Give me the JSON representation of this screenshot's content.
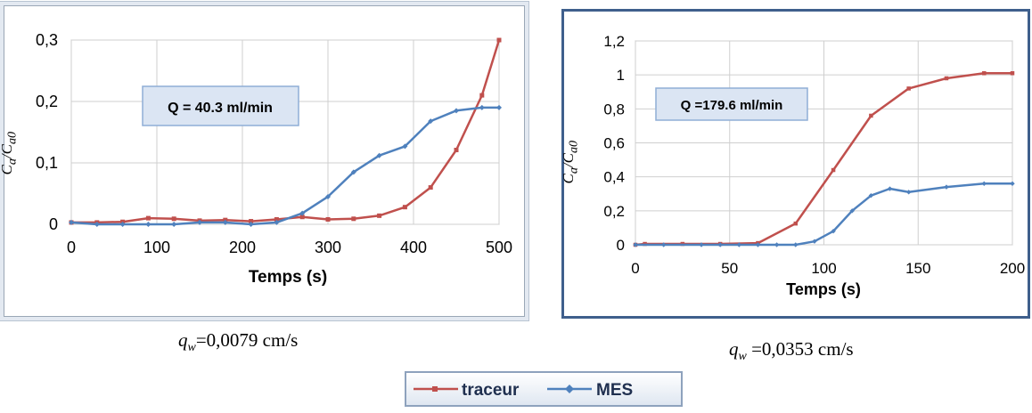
{
  "chart_data": [
    {
      "type": "line",
      "xlabel": "Temps (s)",
      "ylabel": "C_a/C_a0",
      "annotation": "Q = 40.3 ml/min",
      "caption_var": "q",
      "caption_sub": "w",
      "caption_value": "=0,0079 cm/s",
      "xlim": [
        0,
        500
      ],
      "ylim": [
        0,
        0.3
      ],
      "xticks": [
        0,
        100,
        200,
        300,
        400,
        500
      ],
      "yticks": [
        0,
        0.1,
        0.2,
        0.3
      ],
      "xtick_labels": [
        "0",
        "100",
        "200",
        "300",
        "400",
        "500"
      ],
      "ytick_labels": [
        "0",
        "0,1",
        "0,2",
        "0,3"
      ],
      "grid": true,
      "series": [
        {
          "name": "traceur",
          "color": "#c0504d",
          "x": [
            0,
            30,
            60,
            90,
            120,
            150,
            180,
            210,
            240,
            270,
            300,
            330,
            360,
            390,
            420,
            450,
            480,
            500
          ],
          "y": [
            0.003,
            0.003,
            0.004,
            0.01,
            0.009,
            0.006,
            0.007,
            0.005,
            0.008,
            0.012,
            0.008,
            0.009,
            0.014,
            0.028,
            0.06,
            0.121,
            0.21,
            0.3
          ]
        },
        {
          "name": "MES",
          "color": "#4f81bd",
          "x": [
            0,
            30,
            60,
            90,
            120,
            150,
            180,
            210,
            240,
            270,
            300,
            330,
            360,
            390,
            420,
            450,
            480,
            500
          ],
          "y": [
            0.003,
            0.0,
            0.0,
            0.0,
            0.0,
            0.003,
            0.003,
            0.0,
            0.003,
            0.018,
            0.045,
            0.085,
            0.112,
            0.127,
            0.168,
            0.185,
            0.19,
            0.19
          ]
        }
      ]
    },
    {
      "type": "line",
      "xlabel": "Temps (s)",
      "ylabel": "C_a/C_a0",
      "annotation": "Q =179.6 ml/min",
      "caption_var": "q",
      "caption_sub": "w",
      "caption_value": " =0,0353 cm/s",
      "xlim": [
        0,
        200
      ],
      "ylim": [
        0,
        1.2
      ],
      "xticks": [
        0,
        50,
        100,
        150,
        200
      ],
      "yticks": [
        0,
        0.2,
        0.4,
        0.6,
        0.8,
        1,
        1.2
      ],
      "xtick_labels": [
        "0",
        "50",
        "100",
        "150",
        "200"
      ],
      "ytick_labels": [
        "0",
        "0,2",
        "0,4",
        "0,6",
        "0,8",
        "1",
        "1,2"
      ],
      "grid": true,
      "series": [
        {
          "name": "traceur",
          "color": "#c0504d",
          "x": [
            0,
            5,
            25,
            45,
            65,
            85,
            105,
            125,
            145,
            165,
            185,
            200
          ],
          "y": [
            0.0,
            0.005,
            0.005,
            0.005,
            0.01,
            0.125,
            0.44,
            0.76,
            0.92,
            0.98,
            1.01,
            1.01
          ]
        },
        {
          "name": "MES",
          "color": "#4f81bd",
          "x": [
            0,
            15,
            35,
            45,
            55,
            65,
            75,
            85,
            95,
            105,
            115,
            125,
            135,
            145,
            165,
            185,
            200
          ],
          "y": [
            0.0,
            0.0,
            0.0,
            0.0,
            0.0,
            0.0,
            0.0,
            0.0,
            0.02,
            0.08,
            0.2,
            0.29,
            0.33,
            0.31,
            0.34,
            0.36,
            0.36
          ]
        }
      ]
    }
  ],
  "legend": {
    "entries": [
      {
        "name": "traceur",
        "color": "#c0504d"
      },
      {
        "name": "MES",
        "color": "#4f81bd"
      }
    ]
  }
}
